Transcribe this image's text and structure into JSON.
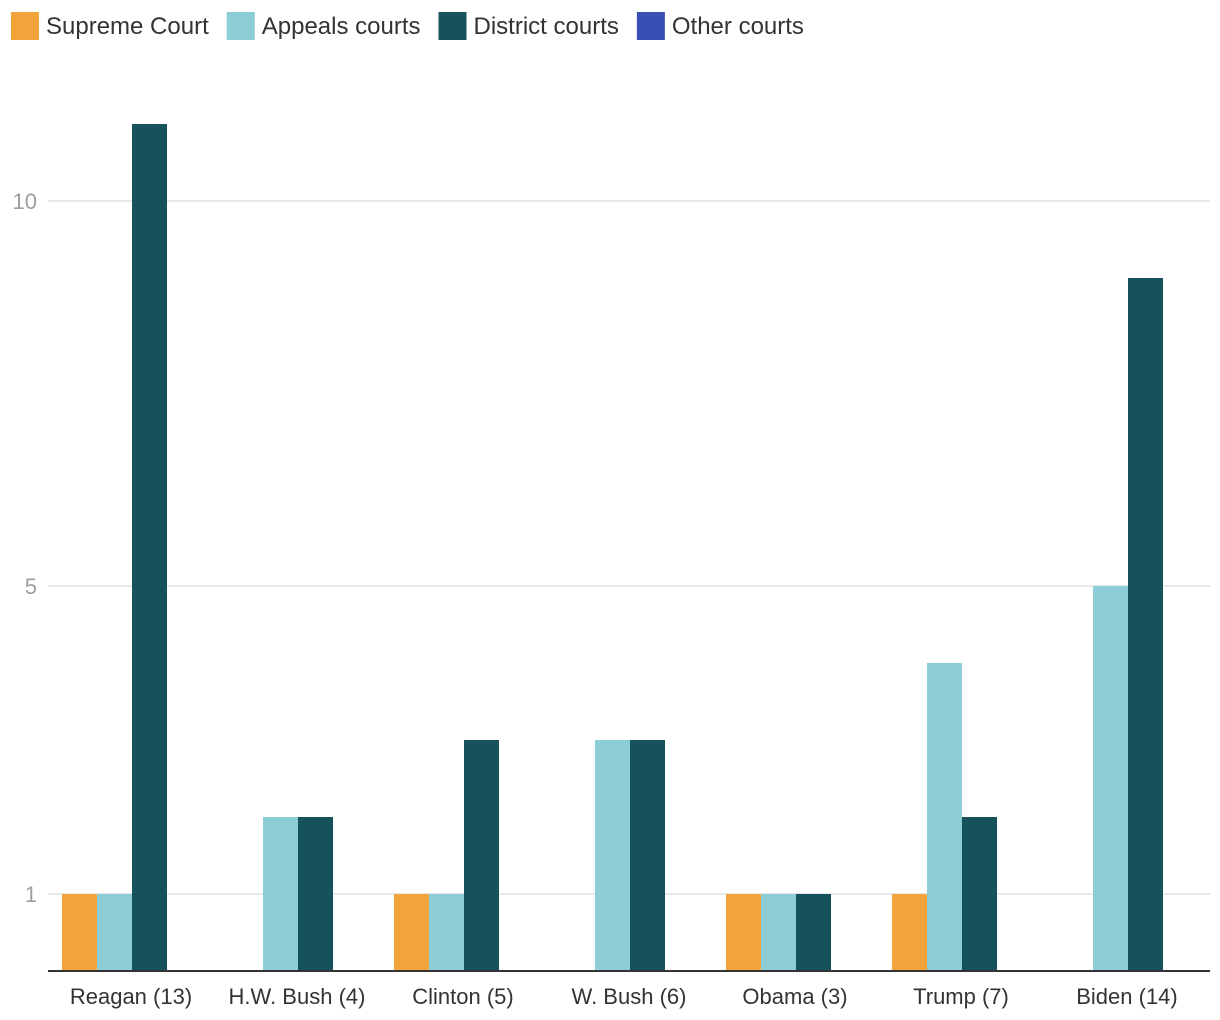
{
  "chart_data": {
    "type": "bar",
    "categories": [
      "Reagan (13)",
      "H.W. Bush (4)",
      "Clinton (5)",
      "W. Bush (6)",
      "Obama (3)",
      "Trump (7)",
      "Biden (14)"
    ],
    "series": [
      {
        "name": "Supreme Court",
        "color": "#f2a33a",
        "values": [
          1,
          0,
          1,
          0,
          1,
          1,
          0
        ]
      },
      {
        "name": "Appeals courts",
        "color": "#8ccdd6",
        "values": [
          1,
          2,
          1,
          3,
          1,
          4,
          5
        ]
      },
      {
        "name": "District courts",
        "color": "#16525c",
        "values": [
          11,
          2,
          3,
          3,
          1,
          2,
          9
        ]
      },
      {
        "name": "Other courts",
        "color": "#3a4fb5",
        "values": [
          0,
          0,
          0,
          0,
          0,
          0,
          0
        ]
      }
    ],
    "yticks": [
      {
        "value": 1,
        "label": "1"
      },
      {
        "value": 5,
        "label": "5"
      },
      {
        "value": 10,
        "label": "10"
      }
    ],
    "ylim": [
      0,
      12
    ],
    "grid": true,
    "legend_position": "top-left"
  }
}
